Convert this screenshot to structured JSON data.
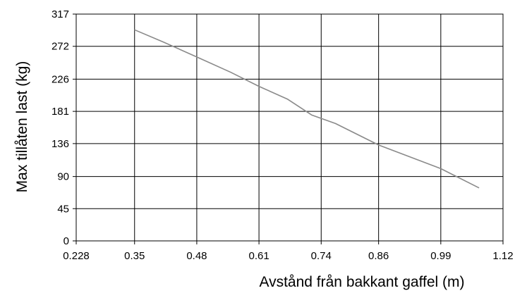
{
  "chart_data": {
    "type": "line",
    "title": "",
    "xlabel": "Avstånd från bakkant gaffel (m)",
    "ylabel": "Max tillåten last (kg)",
    "xlim": [
      0.228,
      1.12
    ],
    "ylim": [
      0,
      317
    ],
    "x_ticks": [
      "0.228",
      "0.35",
      "0.48",
      "0.61",
      "0.74",
      "0.86",
      "0.99",
      "1.12"
    ],
    "x_tick_values": [
      0.228,
      0.35,
      0.48,
      0.61,
      0.74,
      0.86,
      0.99,
      1.12
    ],
    "y_ticks": [
      "0",
      "45",
      "90",
      "136",
      "181",
      "226",
      "272",
      "317"
    ],
    "y_tick_values": [
      0,
      45,
      90,
      136,
      181,
      226,
      272,
      317
    ],
    "grid": true,
    "legend": "none",
    "series": [
      {
        "color": "#8a8a8a",
        "x": [
          0.35,
          0.41,
          0.48,
          0.55,
          0.61,
          0.67,
          0.72,
          0.77,
          0.86,
          0.99,
          1.07
        ],
        "y": [
          295,
          278,
          257,
          236,
          216,
          198,
          176,
          164,
          134,
          101,
          74
        ]
      }
    ]
  }
}
